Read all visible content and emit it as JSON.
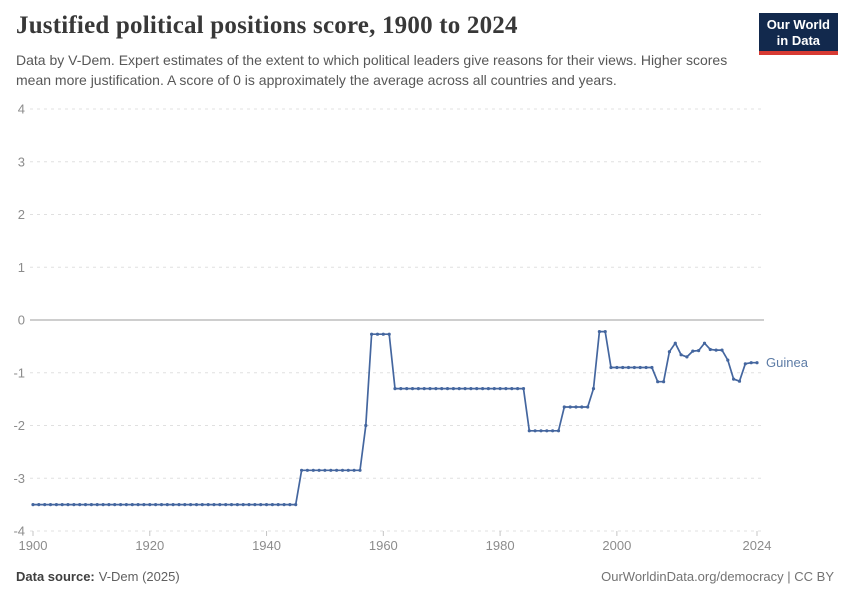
{
  "header": {
    "title": "Justified political positions score, 1900 to 2024",
    "subtitle": "Data by V-Dem. Expert estimates of the extent to which political leaders give reasons for their views. Higher scores mean more justification. A score of 0 is approximately the average across all countries and years.",
    "logo": {
      "line1": "Our World",
      "line2": "in Data",
      "bg": "#12294d",
      "accent": "#d73a33"
    }
  },
  "chart_data": {
    "type": "line",
    "title": "Justified political positions score, 1900 to 2024",
    "entity": "Guinea",
    "xlim": [
      1900,
      2024
    ],
    "ylim": [
      -4,
      4
    ],
    "x_ticks": [
      1900,
      1920,
      1940,
      1960,
      1980,
      2000,
      2024
    ],
    "y_ticks": [
      4,
      3,
      2,
      1,
      0,
      -1,
      -2,
      -3,
      -4
    ],
    "grid": "horizontal dashed, solid zero line",
    "legend_position": "entity label at right end of line",
    "markers": "small dot at every yearly value",
    "runs_year_start_end_value": [
      [
        1900,
        1945,
        -3.5
      ],
      [
        1946,
        1956,
        -2.85
      ],
      [
        1957,
        1957,
        -2.0
      ],
      [
        1958,
        1961,
        -0.27
      ],
      [
        1962,
        1984,
        -1.3
      ],
      [
        1985,
        1990,
        -2.1
      ],
      [
        1991,
        1995,
        -1.65
      ],
      [
        1996,
        1996,
        -1.3
      ],
      [
        1997,
        1998,
        -0.22
      ],
      [
        1999,
        2006,
        -0.9
      ],
      [
        2007,
        2008,
        -1.17
      ],
      [
        2009,
        2009,
        -0.6
      ],
      [
        2010,
        2010,
        -0.44
      ],
      [
        2011,
        2011,
        -0.66
      ],
      [
        2012,
        2012,
        -0.7
      ],
      [
        2013,
        2013,
        -0.59
      ],
      [
        2014,
        2014,
        -0.58
      ],
      [
        2015,
        2015,
        -0.44
      ],
      [
        2016,
        2016,
        -0.56
      ],
      [
        2017,
        2017,
        -0.57
      ],
      [
        2018,
        2018,
        -0.57
      ],
      [
        2019,
        2019,
        -0.76
      ],
      [
        2020,
        2020,
        -1.12
      ],
      [
        2021,
        2021,
        -1.16
      ],
      [
        2022,
        2022,
        -0.83
      ],
      [
        2023,
        2023,
        -0.81
      ],
      [
        2024,
        2024,
        -0.81
      ]
    ],
    "colors": {
      "line": "#44669f",
      "entity_label": "#5d7ca6",
      "grid": "#e0e0e0",
      "zero_line": "#9c9c9c",
      "tick_text": "#8c8c8c"
    }
  },
  "footer": {
    "source_label": "Data source:",
    "source_value": "V-Dem (2025)",
    "attribution": "OurWorldinData.org/democracy | CC BY"
  }
}
